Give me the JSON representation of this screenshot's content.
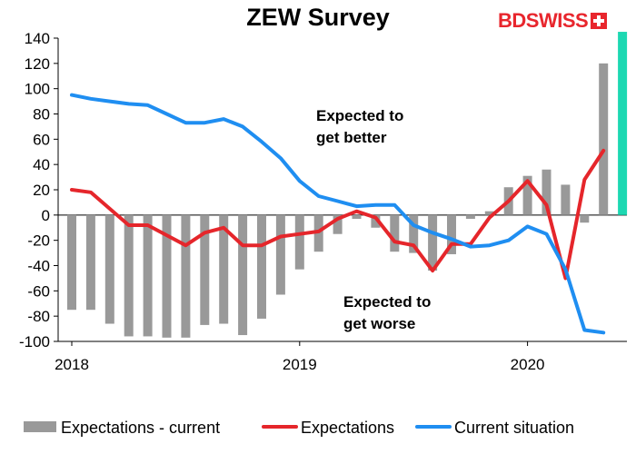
{
  "chart_data": {
    "type": "bar",
    "title": "ZEW Survey",
    "ylim": [
      -100,
      140
    ],
    "yticks": [
      140,
      120,
      100,
      80,
      60,
      40,
      20,
      0,
      -20,
      -40,
      -60,
      -80,
      -100
    ],
    "xlabels": [
      {
        "label": "2018",
        "date": "2018-01"
      },
      {
        "label": "2019",
        "date": "2019-01"
      },
      {
        "label": "2020",
        "date": "2020-01"
      }
    ],
    "x": [
      "2018-01",
      "2018-02",
      "2018-03",
      "2018-04",
      "2018-05",
      "2018-06",
      "2018-07",
      "2018-08",
      "2018-09",
      "2018-10",
      "2018-11",
      "2018-12",
      "2019-01",
      "2019-02",
      "2019-03",
      "2019-04",
      "2019-05",
      "2019-06",
      "2019-07",
      "2019-08",
      "2019-09",
      "2019-10",
      "2019-11",
      "2019-12",
      "2020-01",
      "2020-02",
      "2020-03",
      "2020-04",
      "2020-05"
    ],
    "series": [
      {
        "name": "Expectations - current",
        "kind": "bar",
        "color": "#999999",
        "values": [
          -75,
          -75,
          -86,
          -96,
          -96,
          -97,
          -97,
          -87,
          -86,
          -95,
          -82,
          -63,
          -43,
          -29,
          -15,
          -3,
          -10,
          -29,
          -30,
          -44,
          -31,
          -3,
          3,
          22,
          31,
          36,
          24,
          -6,
          120
        ]
      },
      {
        "name": "Expectations",
        "kind": "line",
        "color": "#e5262b",
        "values": [
          20,
          18,
          5,
          -8,
          -8,
          -16,
          -24,
          -14,
          -10,
          -24,
          -24,
          -17,
          -15,
          -13,
          -3,
          3,
          -2,
          -21,
          -24,
          -44,
          -23,
          -23,
          -2,
          11,
          27,
          8,
          -50,
          28,
          51
        ]
      },
      {
        "name": "Current situation",
        "kind": "line",
        "color": "#1f8ef1",
        "values": [
          95,
          92,
          90,
          88,
          87,
          80,
          73,
          73,
          76,
          70,
          58,
          45,
          27,
          15,
          11,
          7,
          8,
          8,
          -8,
          -14,
          -19,
          -25,
          -24,
          -20,
          -9,
          -15,
          -43,
          -91,
          -93
        ]
      }
    ],
    "highlight": {
      "x": "2020-06",
      "value": 145,
      "color": "#1dd8b2"
    },
    "annotations": [
      {
        "lines": [
          "Expected to",
          "get better"
        ]
      },
      {
        "lines": [
          "Expected to",
          "get worse"
        ]
      }
    ],
    "legend_position": "bottom"
  },
  "logo": {
    "part1": "BD",
    "part2": "SWISS"
  }
}
